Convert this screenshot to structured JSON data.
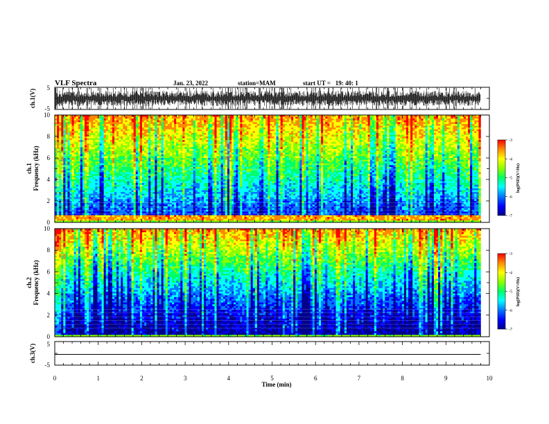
{
  "header": {
    "title": "VLF Spectra",
    "date": "Jan. 23, 2022",
    "station": "station=MAM",
    "start": "start UT =   19: 40: 1"
  },
  "chart_data": [
    {
      "type": "line",
      "id": "ch1-waveform",
      "ylabel": "ch.1(V)",
      "ylim": [
        -5,
        5
      ],
      "yticks": [
        "5",
        "-5"
      ],
      "xlim": [
        0,
        10
      ],
      "data_end_min": 9.8,
      "description_values": {
        "amplitude_range_V": [
          -5,
          5
        ]
      }
    },
    {
      "type": "heatmap",
      "id": "ch1-spectrogram",
      "ylabel": "ch.1\nFrequency (kHz)",
      "ylabel_lines": [
        "ch.1",
        "Frequency (kHz)"
      ],
      "ylim": [
        0,
        10
      ],
      "yticks": [
        "0",
        "2",
        "4",
        "6",
        "8",
        "10"
      ],
      "xlim": [
        0,
        10
      ],
      "data_end_min": 9.8,
      "colorbar": {
        "label": "log(PSD)(V²/Hz)",
        "range": [
          -7,
          -3
        ],
        "ticks": [
          "-3",
          "-4",
          "-5",
          "-6",
          "-7"
        ]
      }
    },
    {
      "type": "heatmap",
      "id": "ch2-spectrogram",
      "ylabel": "ch.2\nFrequency (kHz)",
      "ylabel_lines": [
        "ch.2",
        "Frequency (kHz)"
      ],
      "ylim": [
        0,
        10
      ],
      "yticks": [
        "0",
        "2",
        "4",
        "6",
        "8",
        "10"
      ],
      "xlim": [
        0,
        10
      ],
      "data_end_min": 9.8,
      "colorbar": {
        "label": "log(PSD)(V²/Hz)",
        "range": [
          -7,
          -3
        ],
        "ticks": [
          "-3",
          "-4",
          "-5",
          "-6",
          "-7"
        ]
      }
    },
    {
      "type": "line",
      "id": "ch3-waveform",
      "ylabel": "ch.3(V)",
      "ylim": [
        -5,
        5
      ],
      "yticks": [
        "5",
        "-5"
      ],
      "xlim": [
        0,
        10
      ],
      "constant_value_V": 0,
      "xlabel": "Time (min)",
      "xticks": [
        "0",
        "1",
        "2",
        "3",
        "4",
        "5",
        "6",
        "7",
        "8",
        "9",
        "10"
      ]
    }
  ],
  "colors": {
    "colormap": [
      "#00008c",
      "#0000ff",
      "#0078ff",
      "#00ffff",
      "#00ff66",
      "#88ff00",
      "#ffff00",
      "#ff8800",
      "#ff0000"
    ],
    "trace": "#000000",
    "frame": "#000000"
  }
}
